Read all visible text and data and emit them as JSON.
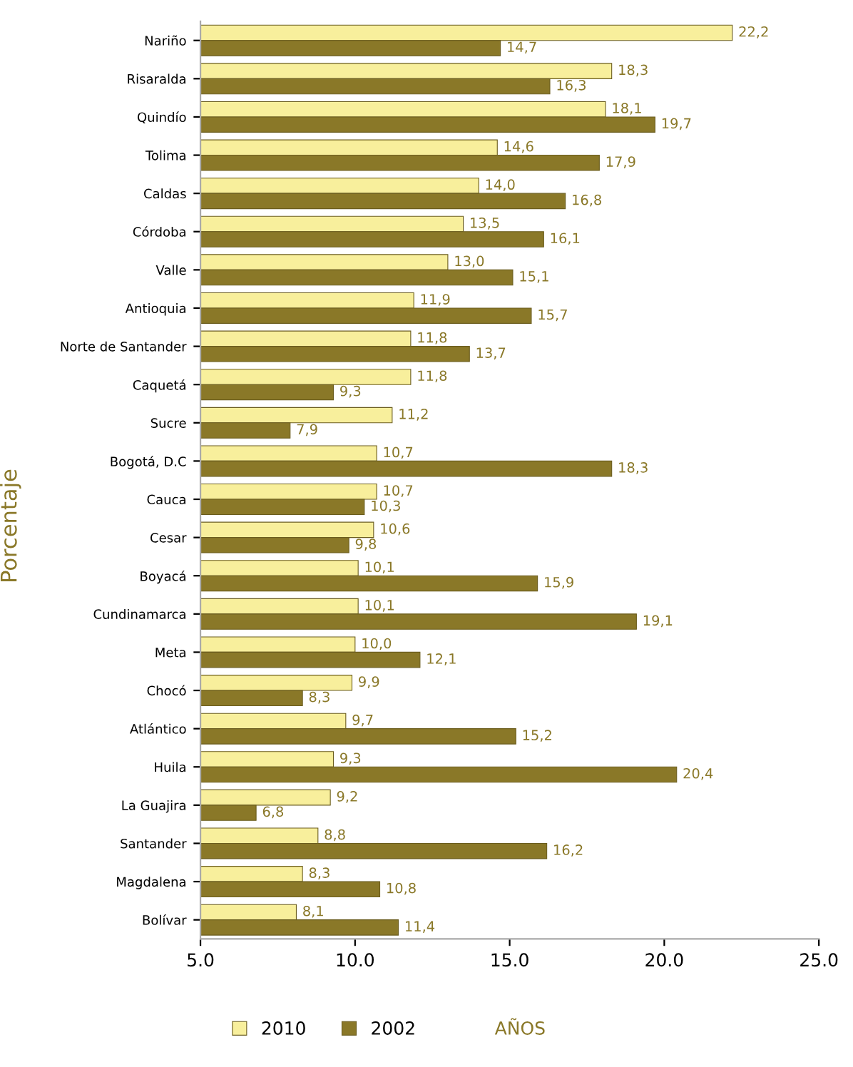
{
  "chart_data": {
    "type": "bar",
    "orientation": "horizontal",
    "xlabel": "AÑOS",
    "ylabel": "Porcentaje",
    "categories": [
      "Nariño",
      "Risaralda",
      "Quindío",
      "Tolima",
      "Caldas",
      "Córdoba",
      "Valle",
      "Antioquia",
      "Norte de Santander",
      "Caquetá",
      "Sucre",
      "Bogotá, D.C",
      "Cauca",
      "Cesar",
      "Boyacá",
      "Cundinamarca",
      "Meta",
      "Chocó",
      "Atlántico",
      "Huila",
      "La Guajira",
      "Santander",
      "Magdalena",
      "Bolívar"
    ],
    "series": [
      {
        "name": "2010",
        "color": "#f8ef9c",
        "values": [
          22.2,
          18.3,
          18.1,
          14.6,
          14.0,
          13.5,
          13.0,
          11.9,
          11.8,
          11.8,
          11.2,
          10.7,
          10.7,
          10.6,
          10.1,
          10.1,
          10.0,
          9.9,
          9.7,
          9.3,
          9.2,
          8.8,
          8.3,
          8.1
        ],
        "value_labels": [
          "22,2",
          "18,3",
          "18,1",
          "14,6",
          "14,0",
          "13,5",
          "13,0",
          "11,9",
          "11,8",
          "11,8",
          "11,2",
          "10,7",
          "10,7",
          "10,6",
          "10,1",
          "10,1",
          "10,0",
          "9,9",
          "9,7",
          "9,3",
          "9,2",
          "8,8",
          "8,3",
          "8,1"
        ]
      },
      {
        "name": "2002",
        "color": "#8a7828",
        "values": [
          14.7,
          16.3,
          19.7,
          17.9,
          16.8,
          16.1,
          15.1,
          15.7,
          13.7,
          9.3,
          7.9,
          18.3,
          10.3,
          9.8,
          15.9,
          19.1,
          12.1,
          8.3,
          15.2,
          20.4,
          6.8,
          16.2,
          10.8,
          11.4
        ],
        "value_labels": [
          "14,7",
          "16,3",
          "19,7",
          "17,9",
          "16,8",
          "16,1",
          "15,1",
          "15,7",
          "13,7",
          "9,3",
          "7,9",
          "18,3",
          "10,3",
          "9,8",
          "15,9",
          "19,1",
          "12,1",
          "8,3",
          "15,2",
          "20,4",
          "6,8",
          "16,2",
          "10,8",
          "11,4"
        ]
      }
    ],
    "xlim": [
      5.0,
      25.0
    ],
    "xticks": [
      {
        "value": 5.0,
        "label": "5.0"
      },
      {
        "value": 10.0,
        "label": "10.0"
      },
      {
        "value": 15.0,
        "label": "15.0"
      },
      {
        "value": 20.0,
        "label": "20.0"
      },
      {
        "value": 25.0,
        "label": "25.0"
      }
    ],
    "grid": false,
    "legend": "bottom"
  }
}
